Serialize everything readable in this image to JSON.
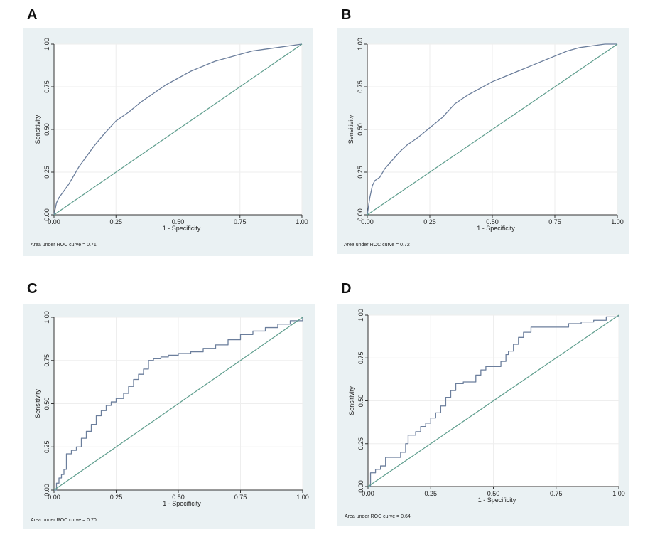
{
  "colors": {
    "panel_background": "#eaf1f3",
    "plot_background": "#ffffff",
    "roc_line": "#6b7e9c",
    "reference_line": "#5f9e8e",
    "grid": "#eeeeee"
  },
  "chart_data": [
    {
      "type": "line",
      "panel_label": "A",
      "xlabel": "1 - Specificity",
      "ylabel": "Sensitivity",
      "xlim": [
        0,
        1
      ],
      "ylim": [
        0,
        1
      ],
      "x_ticks": [
        "0.00",
        "0.25",
        "0.50",
        "0.75",
        "1.00"
      ],
      "y_ticks": [
        "0.00",
        "0.25",
        "0.50",
        "0.75",
        "1.00"
      ],
      "grid": true,
      "note": "Area under ROC curve = 0.71",
      "series": [
        {
          "role": "roc",
          "step": false,
          "x": [
            0,
            0.01,
            0.02,
            0.04,
            0.06,
            0.08,
            0.1,
            0.13,
            0.16,
            0.2,
            0.25,
            0.3,
            0.35,
            0.4,
            0.45,
            0.5,
            0.55,
            0.6,
            0.65,
            0.7,
            0.75,
            0.8,
            0.85,
            0.9,
            0.95,
            1.0
          ],
          "y": [
            0,
            0.07,
            0.1,
            0.14,
            0.18,
            0.23,
            0.28,
            0.34,
            0.4,
            0.47,
            0.55,
            0.6,
            0.66,
            0.71,
            0.76,
            0.8,
            0.84,
            0.87,
            0.9,
            0.92,
            0.94,
            0.96,
            0.97,
            0.98,
            0.99,
            1.0
          ]
        },
        {
          "role": "reference",
          "step": false,
          "x": [
            0,
            1
          ],
          "y": [
            0,
            1
          ]
        }
      ]
    },
    {
      "type": "line",
      "panel_label": "B",
      "xlabel": "1 - Specificity",
      "ylabel": "Sensitivity",
      "xlim": [
        0,
        1
      ],
      "ylim": [
        0,
        1
      ],
      "x_ticks": [
        "0.00",
        "0.25",
        "0.50",
        "0.75",
        "1.00"
      ],
      "y_ticks": [
        "0.00",
        "0.25",
        "0.50",
        "0.75",
        "1.00"
      ],
      "grid": true,
      "note": "Area under ROC curve = 0.72",
      "series": [
        {
          "role": "roc",
          "step": false,
          "x": [
            0,
            0.005,
            0.01,
            0.02,
            0.03,
            0.05,
            0.07,
            0.1,
            0.13,
            0.16,
            0.2,
            0.25,
            0.3,
            0.35,
            0.4,
            0.45,
            0.5,
            0.55,
            0.6,
            0.65,
            0.7,
            0.75,
            0.8,
            0.85,
            0.9,
            0.95,
            1.0
          ],
          "y": [
            0,
            0.05,
            0.1,
            0.17,
            0.2,
            0.22,
            0.27,
            0.32,
            0.37,
            0.41,
            0.45,
            0.51,
            0.57,
            0.65,
            0.7,
            0.74,
            0.78,
            0.81,
            0.84,
            0.87,
            0.9,
            0.93,
            0.96,
            0.98,
            0.99,
            1.0,
            1.0
          ]
        },
        {
          "role": "reference",
          "step": false,
          "x": [
            0,
            1
          ],
          "y": [
            0,
            1
          ]
        }
      ]
    },
    {
      "type": "line",
      "panel_label": "C",
      "xlabel": "1 - Specificity",
      "ylabel": "Sensitivity",
      "xlim": [
        0,
        1
      ],
      "ylim": [
        0,
        1
      ],
      "x_ticks": [
        "0.00",
        "0.25",
        "0.50",
        "0.75",
        "1.00"
      ],
      "y_ticks": [
        "0.00",
        "0.25",
        "0.50",
        "0.75",
        "1.00"
      ],
      "grid": true,
      "note": "Area under ROC curve = 0.70",
      "series": [
        {
          "role": "roc",
          "step": true,
          "x": [
            0,
            0.01,
            0.02,
            0.03,
            0.04,
            0.05,
            0.07,
            0.09,
            0.11,
            0.13,
            0.15,
            0.17,
            0.19,
            0.21,
            0.23,
            0.25,
            0.28,
            0.3,
            0.32,
            0.34,
            0.36,
            0.38,
            0.4,
            0.43,
            0.46,
            0.5,
            0.55,
            0.6,
            0.65,
            0.7,
            0.75,
            0.8,
            0.85,
            0.9,
            0.95,
            1.0
          ],
          "y": [
            0,
            0.04,
            0.07,
            0.09,
            0.12,
            0.21,
            0.23,
            0.25,
            0.3,
            0.34,
            0.38,
            0.43,
            0.46,
            0.49,
            0.51,
            0.53,
            0.56,
            0.6,
            0.64,
            0.67,
            0.7,
            0.75,
            0.76,
            0.77,
            0.78,
            0.79,
            0.8,
            0.82,
            0.84,
            0.87,
            0.9,
            0.92,
            0.94,
            0.96,
            0.98,
            1.0
          ]
        },
        {
          "role": "reference",
          "step": false,
          "x": [
            0,
            1
          ],
          "y": [
            0,
            1
          ]
        }
      ]
    },
    {
      "type": "line",
      "panel_label": "D",
      "xlabel": "1 - Specificity",
      "ylabel": "Sensitivity",
      "xlim": [
        0,
        1
      ],
      "ylim": [
        0,
        1
      ],
      "x_ticks": [
        "0.00",
        "0.25",
        "0.50",
        "0.75",
        "1.00"
      ],
      "y_ticks": [
        "0.00",
        "0.25",
        "0.50",
        "0.75",
        "1.00"
      ],
      "grid": true,
      "note": "Area under ROC curve = 0.64",
      "series": [
        {
          "role": "roc",
          "step": true,
          "x": [
            0,
            0.01,
            0.03,
            0.05,
            0.07,
            0.1,
            0.13,
            0.15,
            0.16,
            0.19,
            0.21,
            0.23,
            0.25,
            0.27,
            0.29,
            0.31,
            0.33,
            0.35,
            0.38,
            0.4,
            0.43,
            0.45,
            0.47,
            0.5,
            0.53,
            0.55,
            0.56,
            0.58,
            0.6,
            0.62,
            0.65,
            0.7,
            0.75,
            0.8,
            0.85,
            0.9,
            0.95,
            1.0
          ],
          "y": [
            0,
            0.08,
            0.1,
            0.12,
            0.17,
            0.17,
            0.2,
            0.25,
            0.3,
            0.32,
            0.35,
            0.37,
            0.4,
            0.43,
            0.47,
            0.52,
            0.56,
            0.6,
            0.61,
            0.61,
            0.65,
            0.68,
            0.7,
            0.7,
            0.73,
            0.77,
            0.79,
            0.83,
            0.87,
            0.9,
            0.93,
            0.93,
            0.93,
            0.95,
            0.96,
            0.97,
            0.99,
            1.0
          ]
        },
        {
          "role": "reference",
          "step": false,
          "x": [
            0,
            1
          ],
          "y": [
            0,
            1
          ]
        }
      ]
    }
  ]
}
